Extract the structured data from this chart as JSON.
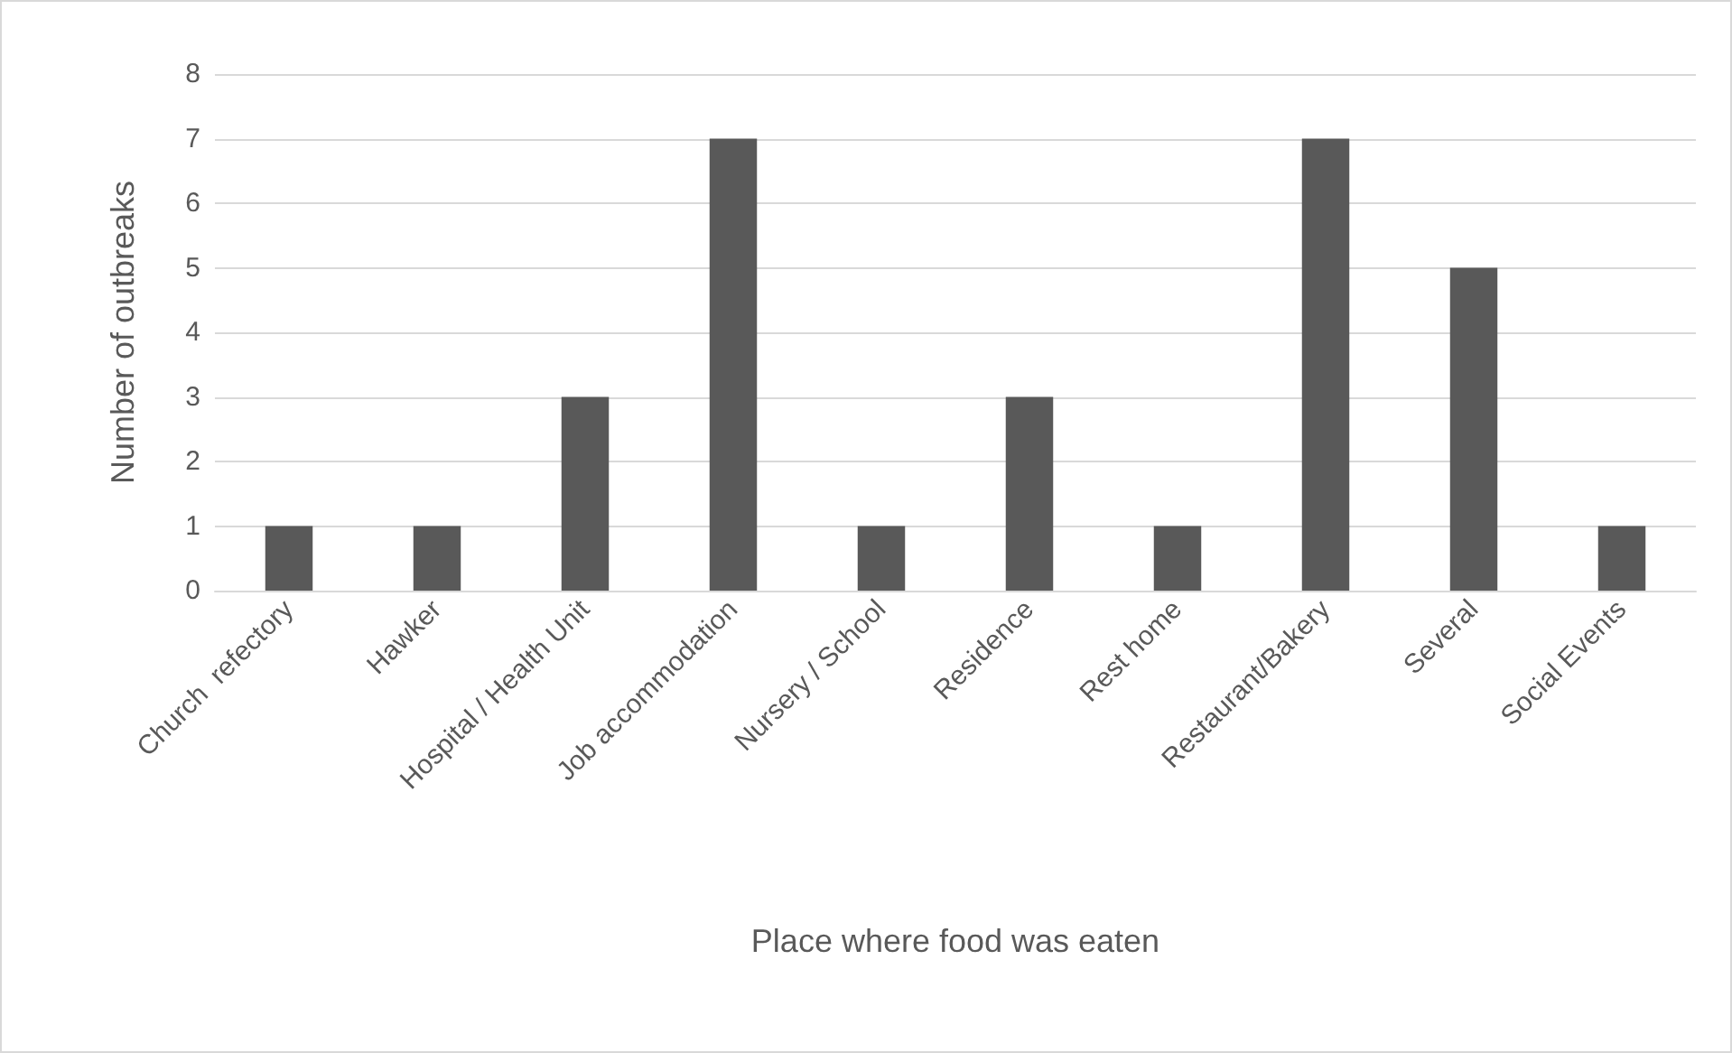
{
  "chart_data": {
    "type": "bar",
    "xlabel": "Place where food was eaten",
    "ylabel": "Number of outbreaks",
    "categories": [
      "Church  refectory",
      "Hawker",
      "Hospital / Health Unit",
      "Job accommodation",
      "Nursery / School",
      "Residence",
      "Rest home",
      "Restaurant/Bakery",
      "Several",
      "Social Events"
    ],
    "values": [
      1,
      1,
      3,
      7,
      1,
      3,
      1,
      7,
      5,
      1
    ],
    "color": "#595959",
    "ylim": [
      0,
      8
    ],
    "yticks": [
      0,
      1,
      2,
      3,
      4,
      5,
      6,
      7,
      8
    ],
    "grid": "y"
  }
}
